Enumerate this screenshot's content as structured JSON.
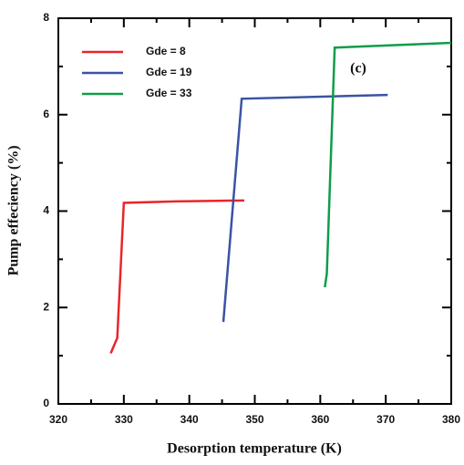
{
  "chart_data": {
    "type": "line",
    "xlabel": "Desorption temperature (K)",
    "ylabel": "Pump effeciency (%)",
    "annotation": "(c)",
    "xlim": [
      320,
      380
    ],
    "xticks": [
      320,
      330,
      340,
      350,
      360,
      370,
      380
    ],
    "xminorticks": [
      325,
      335,
      345,
      355,
      365,
      375
    ],
    "ylim": [
      0,
      8
    ],
    "yticks": [
      0,
      2,
      4,
      6,
      8
    ],
    "yminorticks": [
      1,
      3,
      5,
      7
    ],
    "legend": "upper-left",
    "series": [
      {
        "name": "Gde = 8",
        "color": "#e8262a",
        "x": [
          328,
          329,
          330,
          338,
          348.4
        ],
        "values": [
          1.05,
          1.37,
          4.17,
          4.2,
          4.22
        ]
      },
      {
        "name": "Gde = 19",
        "color": "#3a53a4",
        "x": [
          345.2,
          348,
          370.3
        ],
        "values": [
          1.7,
          6.33,
          6.41
        ]
      },
      {
        "name": "Gde = 33",
        "color": "#0f9d4a",
        "x": [
          360.7,
          361,
          362.2,
          380
        ],
        "values": [
          2.42,
          2.7,
          7.39,
          7.49
        ]
      }
    ]
  }
}
